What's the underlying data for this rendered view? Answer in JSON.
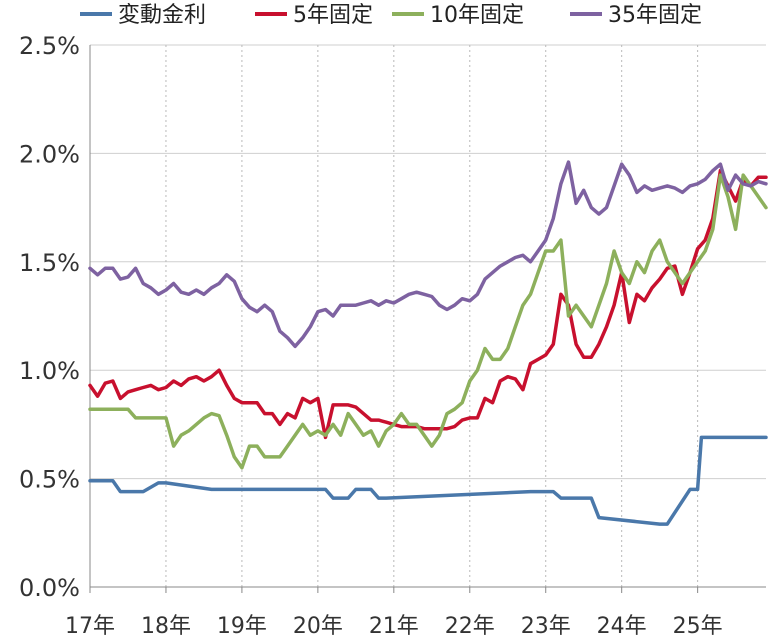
{
  "chart_data": {
    "type": "line",
    "title": "",
    "xlabel": "",
    "ylabel": "",
    "x_tick_labels": [
      "17年",
      "18年",
      "19年",
      "20年",
      "21年",
      "22年",
      "23年",
      "24年",
      "25年"
    ],
    "y_tick_labels": [
      "0.0%",
      "0.5%",
      "1.0%",
      "1.5%",
      "2.0%",
      "2.5%"
    ],
    "ylim": [
      0,
      2.5
    ],
    "xlim": [
      2017.0,
      2025.9
    ],
    "grid": "dashed-vertical-at-years",
    "legend_position": "top",
    "series": [
      {
        "name": "変動金利",
        "color": "#4a78aa",
        "x": [
          2017.0,
          2017.3,
          2017.4,
          2017.6,
          2017.7,
          2017.9,
          2018.0,
          2018.6,
          2019.5,
          2019.8,
          2019.9,
          2020.0,
          2020.1,
          2020.2,
          2020.3,
          2020.4,
          2020.5,
          2020.6,
          2020.7,
          2020.8,
          2020.9,
          2022.8,
          2022.9,
          2023.1,
          2023.2,
          2023.6,
          2023.7,
          2024.5,
          2024.6,
          2024.9,
          2025.0,
          2025.05,
          2025.9
        ],
        "y": [
          0.49,
          0.49,
          0.44,
          0.44,
          0.44,
          0.48,
          0.48,
          0.45,
          0.45,
          0.45,
          0.45,
          0.45,
          0.45,
          0.41,
          0.41,
          0.41,
          0.45,
          0.45,
          0.45,
          0.41,
          0.41,
          0.44,
          0.44,
          0.44,
          0.41,
          0.41,
          0.32,
          0.29,
          0.29,
          0.45,
          0.45,
          0.69,
          0.69
        ]
      },
      {
        "name": "5年固定",
        "color": "#c8102e",
        "x": [
          2017.0,
          2017.1,
          2017.2,
          2017.3,
          2017.4,
          2017.5,
          2017.6,
          2017.7,
          2017.8,
          2017.9,
          2018.0,
          2018.1,
          2018.2,
          2018.3,
          2018.4,
          2018.5,
          2018.6,
          2018.7,
          2018.8,
          2018.9,
          2019.0,
          2019.1,
          2019.2,
          2019.3,
          2019.4,
          2019.5,
          2019.6,
          2019.7,
          2019.8,
          2019.9,
          2020.0,
          2020.1,
          2020.2,
          2020.3,
          2020.4,
          2020.5,
          2020.6,
          2020.7,
          2020.8,
          2020.9,
          2021.0,
          2021.1,
          2021.2,
          2021.3,
          2021.4,
          2021.5,
          2021.6,
          2021.7,
          2021.8,
          2021.9,
          2022.0,
          2022.1,
          2022.2,
          2022.3,
          2022.4,
          2022.5,
          2022.6,
          2022.7,
          2022.8,
          2022.9,
          2023.0,
          2023.1,
          2023.2,
          2023.3,
          2023.4,
          2023.5,
          2023.6,
          2023.7,
          2023.8,
          2023.9,
          2024.0,
          2024.1,
          2024.2,
          2024.3,
          2024.4,
          2024.5,
          2024.6,
          2024.7,
          2024.8,
          2024.9,
          2025.0,
          2025.1,
          2025.2,
          2025.3,
          2025.4,
          2025.5,
          2025.6,
          2025.7,
          2025.8,
          2025.9
        ],
        "y": [
          0.93,
          0.88,
          0.94,
          0.95,
          0.87,
          0.9,
          0.91,
          0.92,
          0.93,
          0.91,
          0.92,
          0.95,
          0.93,
          0.96,
          0.97,
          0.95,
          0.97,
          1.0,
          0.93,
          0.87,
          0.85,
          0.85,
          0.85,
          0.8,
          0.8,
          0.75,
          0.8,
          0.78,
          0.87,
          0.85,
          0.87,
          0.69,
          0.84,
          0.84,
          0.84,
          0.83,
          0.8,
          0.77,
          0.77,
          0.76,
          0.75,
          0.74,
          0.74,
          0.74,
          0.73,
          0.73,
          0.73,
          0.73,
          0.74,
          0.77,
          0.78,
          0.78,
          0.87,
          0.85,
          0.95,
          0.97,
          0.96,
          0.91,
          1.03,
          1.05,
          1.07,
          1.12,
          1.35,
          1.3,
          1.12,
          1.06,
          1.06,
          1.12,
          1.2,
          1.3,
          1.45,
          1.22,
          1.35,
          1.32,
          1.38,
          1.42,
          1.47,
          1.48,
          1.35,
          1.45,
          1.56,
          1.6,
          1.7,
          1.92,
          1.85,
          1.78,
          1.88,
          1.85,
          1.89,
          1.89
        ]
      },
      {
        "name": "10年固定",
        "color": "#8db05c",
        "x": [
          2017.0,
          2017.5,
          2017.6,
          2017.7,
          2018.0,
          2018.1,
          2018.2,
          2018.3,
          2018.4,
          2018.5,
          2018.6,
          2018.7,
          2018.8,
          2018.9,
          2019.0,
          2019.1,
          2019.2,
          2019.3,
          2019.4,
          2019.5,
          2019.6,
          2019.7,
          2019.8,
          2019.9,
          2020.0,
          2020.1,
          2020.2,
          2020.3,
          2020.4,
          2020.5,
          2020.6,
          2020.7,
          2020.8,
          2020.9,
          2021.0,
          2021.1,
          2021.2,
          2021.3,
          2021.4,
          2021.5,
          2021.6,
          2021.7,
          2021.8,
          2021.9,
          2022.0,
          2022.1,
          2022.2,
          2022.3,
          2022.4,
          2022.5,
          2022.6,
          2022.7,
          2022.8,
          2022.9,
          2023.0,
          2023.1,
          2023.2,
          2023.3,
          2023.4,
          2023.5,
          2023.6,
          2023.7,
          2023.8,
          2023.9,
          2024.0,
          2024.1,
          2024.2,
          2024.3,
          2024.4,
          2024.5,
          2024.6,
          2024.7,
          2024.8,
          2024.9,
          2025.0,
          2025.1,
          2025.2,
          2025.3,
          2025.4,
          2025.5,
          2025.6,
          2025.7,
          2025.8,
          2025.9
        ],
        "y": [
          0.82,
          0.82,
          0.78,
          0.78,
          0.78,
          0.65,
          0.7,
          0.72,
          0.75,
          0.78,
          0.8,
          0.79,
          0.7,
          0.6,
          0.55,
          0.65,
          0.65,
          0.6,
          0.6,
          0.6,
          0.65,
          0.7,
          0.75,
          0.7,
          0.72,
          0.7,
          0.75,
          0.7,
          0.8,
          0.75,
          0.7,
          0.72,
          0.65,
          0.72,
          0.75,
          0.8,
          0.75,
          0.75,
          0.7,
          0.65,
          0.7,
          0.8,
          0.82,
          0.85,
          0.95,
          1.0,
          1.1,
          1.05,
          1.05,
          1.1,
          1.2,
          1.3,
          1.35,
          1.45,
          1.55,
          1.55,
          1.6,
          1.25,
          1.3,
          1.25,
          1.2,
          1.3,
          1.4,
          1.55,
          1.45,
          1.4,
          1.5,
          1.45,
          1.55,
          1.6,
          1.5,
          1.45,
          1.4,
          1.45,
          1.5,
          1.55,
          1.65,
          1.9,
          1.8,
          1.65,
          1.9,
          1.85,
          1.8,
          1.75
        ]
      },
      {
        "name": "35年固定",
        "color": "#7e62a1",
        "x": [
          2017.0,
          2017.1,
          2017.2,
          2017.3,
          2017.4,
          2017.5,
          2017.6,
          2017.7,
          2017.8,
          2017.9,
          2018.0,
          2018.1,
          2018.2,
          2018.3,
          2018.4,
          2018.5,
          2018.6,
          2018.7,
          2018.8,
          2018.9,
          2019.0,
          2019.1,
          2019.2,
          2019.3,
          2019.4,
          2019.5,
          2019.6,
          2019.7,
          2019.8,
          2019.9,
          2020.0,
          2020.1,
          2020.2,
          2020.3,
          2020.4,
          2020.5,
          2020.6,
          2020.7,
          2020.8,
          2020.9,
          2021.0,
          2021.1,
          2021.2,
          2021.3,
          2021.4,
          2021.5,
          2021.6,
          2021.7,
          2021.8,
          2021.9,
          2022.0,
          2022.1,
          2022.2,
          2022.3,
          2022.4,
          2022.5,
          2022.6,
          2022.7,
          2022.8,
          2022.9,
          2023.0,
          2023.1,
          2023.2,
          2023.3,
          2023.4,
          2023.5,
          2023.6,
          2023.7,
          2023.8,
          2023.9,
          2024.0,
          2024.1,
          2024.2,
          2024.3,
          2024.4,
          2024.5,
          2024.6,
          2024.7,
          2024.8,
          2024.9,
          2025.0,
          2025.1,
          2025.2,
          2025.3,
          2025.4,
          2025.5,
          2025.6,
          2025.7,
          2025.8,
          2025.9
        ],
        "y": [
          1.47,
          1.44,
          1.47,
          1.47,
          1.42,
          1.43,
          1.47,
          1.4,
          1.38,
          1.35,
          1.37,
          1.4,
          1.36,
          1.35,
          1.37,
          1.35,
          1.38,
          1.4,
          1.44,
          1.41,
          1.33,
          1.29,
          1.27,
          1.3,
          1.27,
          1.18,
          1.15,
          1.11,
          1.15,
          1.2,
          1.27,
          1.28,
          1.25,
          1.3,
          1.3,
          1.3,
          1.31,
          1.32,
          1.3,
          1.32,
          1.31,
          1.33,
          1.35,
          1.36,
          1.35,
          1.34,
          1.3,
          1.28,
          1.3,
          1.33,
          1.32,
          1.35,
          1.42,
          1.45,
          1.48,
          1.5,
          1.52,
          1.53,
          1.5,
          1.55,
          1.6,
          1.7,
          1.86,
          1.96,
          1.77,
          1.83,
          1.75,
          1.72,
          1.75,
          1.85,
          1.95,
          1.9,
          1.82,
          1.85,
          1.83,
          1.84,
          1.85,
          1.84,
          1.82,
          1.85,
          1.86,
          1.88,
          1.92,
          1.95,
          1.83,
          1.9,
          1.86,
          1.85,
          1.87,
          1.86
        ]
      }
    ]
  }
}
